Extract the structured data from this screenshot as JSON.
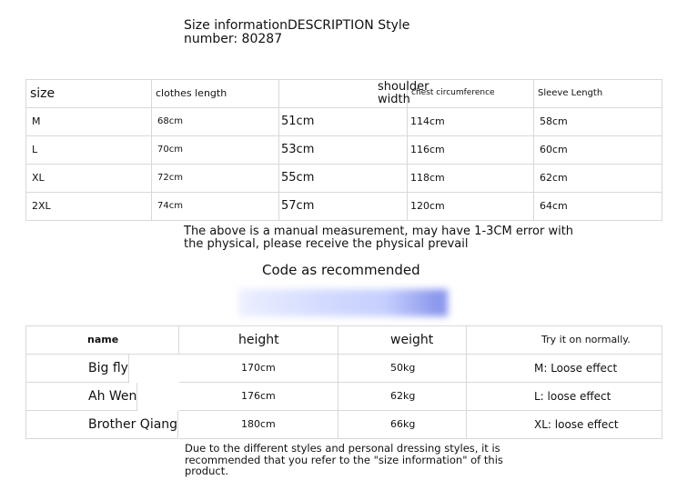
{
  "header": {
    "title": "Size informationDESCRIPTION Style number: 80287"
  },
  "size_table": {
    "headers": [
      "size",
      "clothes length",
      "shoulder width",
      "chest circumference",
      "Sleeve Length"
    ],
    "rows": [
      [
        "M",
        "68cm",
        "51cm",
        "114cm",
        "58cm"
      ],
      [
        "L",
        "70cm",
        "53cm",
        "116cm",
        "60cm"
      ],
      [
        "XL",
        "72cm",
        "55cm",
        "118cm",
        "62cm"
      ],
      [
        "2XL",
        "74cm",
        "57cm",
        "120cm",
        "64cm"
      ]
    ]
  },
  "note": "The above is a manual measurement, may have 1-3CM error with the physical, please receive the physical prevail",
  "recommend_title": "Code as recommended",
  "fit_table": {
    "headers": [
      "name",
      "height",
      "weight",
      "Try it on normally."
    ],
    "rows": [
      [
        "Big fly",
        "170cm",
        "50kg",
        "M: Loose effect"
      ],
      [
        "Ah Wen",
        "176cm",
        "62kg",
        "L: loose effect"
      ],
      [
        "Brother Qiang",
        "180cm",
        "66kg",
        "XL: loose effect"
      ]
    ]
  },
  "footer": "Due to the different styles and personal dressing styles, it is recommended that you refer to the \"size information\" of this product."
}
